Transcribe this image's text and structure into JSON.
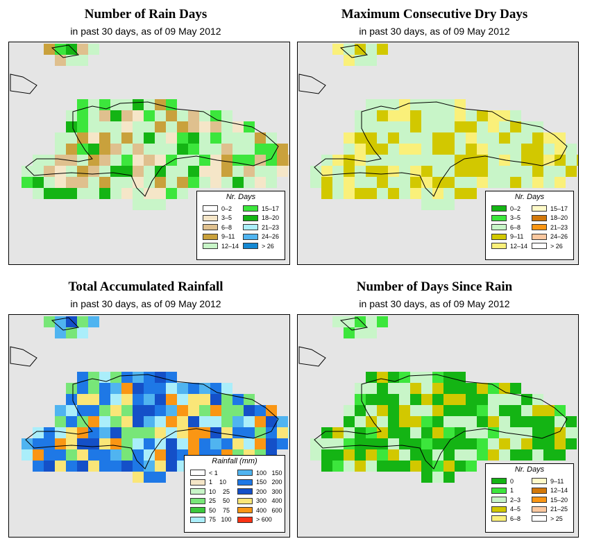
{
  "panels": [
    {
      "title": "Number of Rain Days",
      "subtitle": "in past 30 days, as of  09 May 2012",
      "legend_title": "Nr. Days",
      "legend": [
        {
          "label": "0–2",
          "color": "#ffffff"
        },
        {
          "label": "3–5",
          "color": "#f5e6c8"
        },
        {
          "label": "6–8",
          "color": "#dfc08e"
        },
        {
          "label": "9–11",
          "color": "#c9a13c"
        },
        {
          "label": "12–14",
          "color": "#c8f5c8"
        },
        {
          "label": "15–17",
          "color": "#3ce63c"
        },
        {
          "label": "18–20",
          "color": "#14b414"
        },
        {
          "label": "21–23",
          "color": "#aaeefa"
        },
        {
          "label": "24–26",
          "color": "#50b4f0"
        },
        {
          "label": "> 26",
          "color": "#1488d2"
        }
      ]
    },
    {
      "title": "Maximum Consecutive Dry Days",
      "subtitle": "in past 30 days, as of  09 May 2012",
      "legend_title": "Nr. Days",
      "legend": [
        {
          "label": "0–2",
          "color": "#14b414"
        },
        {
          "label": "3–5",
          "color": "#3ce63c"
        },
        {
          "label": "6–8",
          "color": "#c8f5c8"
        },
        {
          "label": "9–11",
          "color": "#d2c800"
        },
        {
          "label": "12–14",
          "color": "#faf07a"
        },
        {
          "label": "15–17",
          "color": "#fffac8"
        },
        {
          "label": "18–20",
          "color": "#d2780a"
        },
        {
          "label": "21–23",
          "color": "#fa9614"
        },
        {
          "label": "24–26",
          "color": "#fac8a0"
        },
        {
          "label": "> 26",
          "color": "#ffffff"
        }
      ]
    },
    {
      "title": "Total Accumulated Rainfall",
      "subtitle": "in past 30 days, as of  09 May 2012",
      "legend_title": "Rainfall (mm)",
      "legend": [
        {
          "label": "< 1",
          "color": "#ffffff"
        },
        {
          "label": "1    10",
          "color": "#f5e6c8"
        },
        {
          "label": "10    25",
          "color": "#c8f5c8"
        },
        {
          "label": "25    50",
          "color": "#78e678"
        },
        {
          "label": "50    75",
          "color": "#3cc83c"
        },
        {
          "label": "75   100",
          "color": "#aaeefa"
        },
        {
          "label": "100   150",
          "color": "#50b4f0"
        },
        {
          "label": "150   200",
          "color": "#1e78e6"
        },
        {
          "label": "200   300",
          "color": "#1450c8"
        },
        {
          "label": "300   400",
          "color": "#fae678"
        },
        {
          "label": "400   600",
          "color": "#fa9614"
        },
        {
          "label": "> 600",
          "color": "#fa3214"
        }
      ]
    },
    {
      "title": "Number of Days Since Rain",
      "subtitle": "in past 30 days, as of  09 May 2012",
      "legend_title": "Nr. Days",
      "legend": [
        {
          "label": "0",
          "color": "#14b414"
        },
        {
          "label": "1",
          "color": "#3ce63c"
        },
        {
          "label": "2–3",
          "color": "#c8f5c8"
        },
        {
          "label": "4–5",
          "color": "#d2c800"
        },
        {
          "label": "6–8",
          "color": "#faf07a"
        },
        {
          "label": "9–11",
          "color": "#fffac8"
        },
        {
          "label": "12–14",
          "color": "#d2780a"
        },
        {
          "label": "15–20",
          "color": "#fa9614"
        },
        {
          "label": "21–25",
          "color": "#fac8a0"
        },
        {
          "label": "> 25",
          "color": "#ffffff"
        }
      ]
    }
  ]
}
